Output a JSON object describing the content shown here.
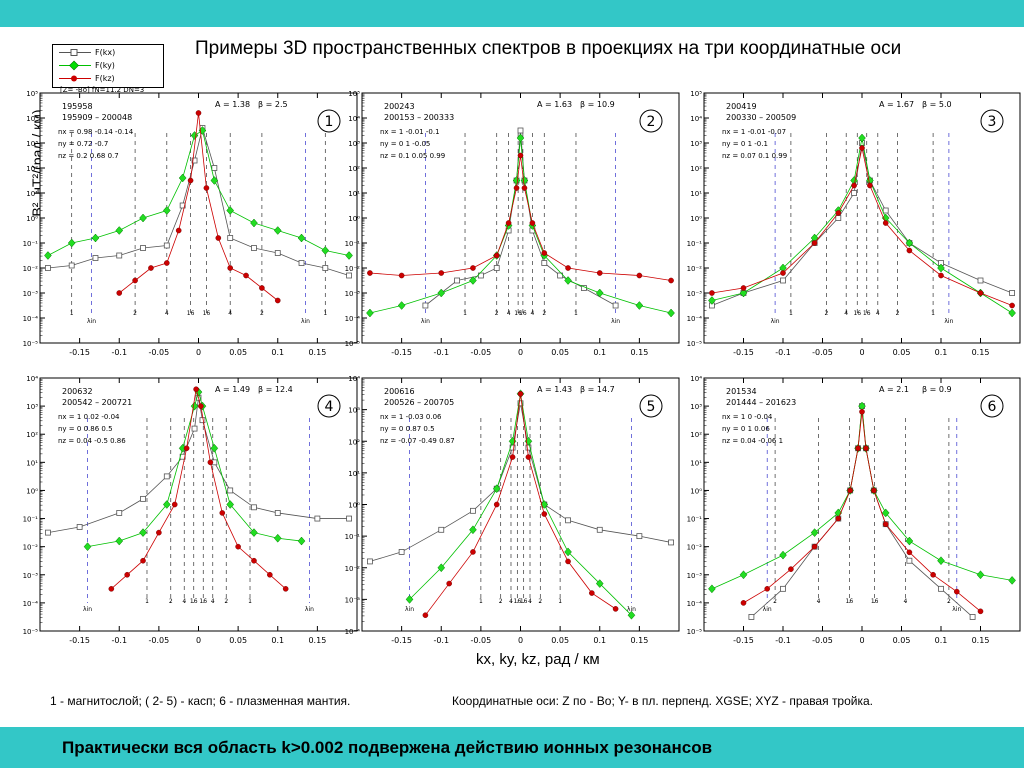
{
  "header": {
    "title": "Примеры 3D пространственных спектров в проекциях на три координатные оси",
    "meta": "[Z= -Bo]  fN=11.2   DN=3"
  },
  "legend": [
    {
      "label": "F(kx)",
      "color": "#555555",
      "marker": "square"
    },
    {
      "label": "F(ky)",
      "color": "#00c000",
      "marker": "diamond"
    },
    {
      "label": "F(kz)",
      "color": "#cc0000",
      "marker": "circle"
    }
  ],
  "axes": {
    "ylabel": "B², нТ²/(рад / км)",
    "xlabel": "kx, ky, kz,   рад / км"
  },
  "notes": {
    "left": "1 -  магнитослой;   ( 2- 5) - касп;    6 - плазменная мантия.",
    "right": "Координатные оси:   Z  по  - Bo;  Y- в пл. перпенд. XGSE;  XYZ - правая тройка."
  },
  "footer": {
    "text": "Практически вся область k>0.002 подвержена действию ионных резонансов"
  },
  "chart_data": [
    {
      "type": "line",
      "panel": "1",
      "ids": [
        "195958",
        "195909  – 200048"
      ],
      "A": "A = 1.38",
      "beta": "β = 2.5",
      "nx": "nx = 0.98  -0.14  -0.14",
      "ny": "ny = 0.72  -0.7",
      "nz": "nz = 0.2  0.68  0.7",
      "xlim": [
        -0.2,
        0.2
      ],
      "ylim_exp": [
        -5,
        5
      ],
      "vlines": [
        {
          "x": -0.16,
          "label": "1"
        },
        {
          "x": -0.135,
          "label": "λin"
        },
        {
          "x": -0.08,
          "label": "2"
        },
        {
          "x": -0.04,
          "label": "4"
        },
        {
          "x": -0.01,
          "label": "16"
        },
        {
          "x": 0.01,
          "label": "16"
        },
        {
          "x": 0.04,
          "label": "4"
        },
        {
          "x": 0.08,
          "label": "2"
        },
        {
          "x": 0.135,
          "label": "λin"
        },
        {
          "x": 0.16,
          "label": "1"
        }
      ],
      "series": [
        {
          "name": "F(kx)",
          "x": [
            -0.19,
            -0.16,
            -0.13,
            -0.1,
            -0.07,
            -0.04,
            -0.02,
            -0.005,
            0.005,
            0.02,
            0.04,
            0.07,
            0.1,
            0.13,
            0.16,
            0.19
          ],
          "y": [
            -2,
            -1.9,
            -1.6,
            -1.5,
            -1.2,
            -1.1,
            0.5,
            2.3,
            3.6,
            2,
            -0.8,
            -1.2,
            -1.4,
            -1.8,
            -2,
            -2.3
          ]
        },
        {
          "name": "F(ky)",
          "x": [
            -0.19,
            -0.16,
            -0.13,
            -0.1,
            -0.07,
            -0.04,
            -0.02,
            -0.005,
            0.005,
            0.02,
            0.04,
            0.07,
            0.1,
            0.13,
            0.16,
            0.19
          ],
          "y": [
            -1.5,
            -1,
            -0.8,
            -0.5,
            0,
            0.3,
            1.6,
            3.3,
            3.5,
            1.5,
            0.3,
            -0.2,
            -0.5,
            -0.8,
            -1.3,
            -1.5
          ]
        },
        {
          "name": "F(kz)",
          "x": [
            -0.1,
            -0.08,
            -0.06,
            -0.04,
            -0.025,
            -0.01,
            0,
            0.01,
            0.025,
            0.04,
            0.06,
            0.08,
            0.1
          ],
          "y": [
            -3,
            -2.5,
            -2,
            -1.8,
            -0.5,
            1.5,
            4.2,
            1.2,
            -0.8,
            -2,
            -2.3,
            -2.8,
            -3.3
          ]
        }
      ]
    },
    {
      "type": "line",
      "panel": "2",
      "ids": [
        "200243",
        "200153  – 200333"
      ],
      "A": "A = 1.63",
      "beta": "β = 10.9",
      "nx": "nx = 1  -0.01  -0.1",
      "ny": "ny = 0  1  -0.05",
      "nz": "nz = 0.1  0.05  0.99",
      "xlim": [
        -0.2,
        0.2
      ],
      "ylim_exp": [
        -5,
        5
      ],
      "vlines": [
        {
          "x": -0.12,
          "label": "λin"
        },
        {
          "x": -0.07,
          "label": "1"
        },
        {
          "x": -0.03,
          "label": "2"
        },
        {
          "x": -0.015,
          "label": "4"
        },
        {
          "x": -0.003,
          "label": "16"
        },
        {
          "x": 0.003,
          "label": "16"
        },
        {
          "x": 0.015,
          "label": "4"
        },
        {
          "x": 0.03,
          "label": "2"
        },
        {
          "x": 0.07,
          "label": "1"
        },
        {
          "x": 0.12,
          "label": "λin"
        }
      ],
      "series": [
        {
          "name": "F(kx)",
          "x": [
            -0.12,
            -0.08,
            -0.05,
            -0.03,
            -0.015,
            -0.005,
            0,
            0.005,
            0.015,
            0.03,
            0.05,
            0.08,
            0.12
          ],
          "y": [
            -3.5,
            -2.5,
            -2.3,
            -2,
            -0.5,
            1.5,
            3.5,
            1.5,
            -0.5,
            -1.8,
            -2.3,
            -2.8,
            -3.5
          ]
        },
        {
          "name": "F(ky)",
          "x": [
            -0.19,
            -0.15,
            -0.1,
            -0.06,
            -0.03,
            -0.015,
            -0.005,
            0,
            0.005,
            0.015,
            0.03,
            0.06,
            0.1,
            0.15,
            0.19
          ],
          "y": [
            -3.8,
            -3.5,
            -3,
            -2.5,
            -1.5,
            -0.3,
            1.5,
            3.2,
            1.5,
            -0.3,
            -1.5,
            -2.5,
            -3,
            -3.5,
            -3.8
          ]
        },
        {
          "name": "F(kz)",
          "x": [
            -0.19,
            -0.15,
            -0.1,
            -0.06,
            -0.03,
            -0.015,
            -0.005,
            0,
            0.005,
            0.015,
            0.03,
            0.06,
            0.1,
            0.15,
            0.19
          ],
          "y": [
            -2.2,
            -2.3,
            -2.2,
            -2,
            -1.5,
            -0.2,
            1.2,
            2.5,
            1.2,
            -0.2,
            -1.4,
            -2,
            -2.2,
            -2.3,
            -2.5
          ]
        }
      ]
    },
    {
      "type": "line",
      "panel": "3",
      "ids": [
        "200419",
        "200330  – 200509"
      ],
      "A": "A = 1.67",
      "beta": "β = 5.0",
      "nx": "nx = 1  -0.01  -0.07",
      "ny": "ny = 0  1  -0.1",
      "nz": "nz = 0.07  0.1  0.99",
      "xlim": [
        -0.2,
        0.2
      ],
      "ylim_exp": [
        -5,
        5
      ],
      "vlines": [
        {
          "x": -0.11,
          "label": "λin"
        },
        {
          "x": -0.09,
          "label": "1"
        },
        {
          "x": -0.045,
          "label": "2"
        },
        {
          "x": -0.02,
          "label": "4"
        },
        {
          "x": -0.006,
          "label": "16"
        },
        {
          "x": 0.006,
          "label": "16"
        },
        {
          "x": 0.02,
          "label": "4"
        },
        {
          "x": 0.045,
          "label": "2"
        },
        {
          "x": 0.09,
          "label": "1"
        },
        {
          "x": 0.11,
          "label": "λin"
        }
      ],
      "series": [
        {
          "name": "F(kx)",
          "x": [
            -0.19,
            -0.15,
            -0.1,
            -0.06,
            -0.03,
            -0.01,
            0,
            0.01,
            0.03,
            0.06,
            0.1,
            0.15,
            0.19
          ],
          "y": [
            -3.5,
            -3,
            -2.5,
            -1,
            0,
            1,
            3,
            1.5,
            0.3,
            -1,
            -1.8,
            -2.5,
            -3
          ]
        },
        {
          "name": "F(ky)",
          "x": [
            -0.19,
            -0.15,
            -0.1,
            -0.06,
            -0.03,
            -0.01,
            0,
            0.01,
            0.03,
            0.06,
            0.1,
            0.15,
            0.19
          ],
          "y": [
            -3.3,
            -3,
            -2,
            -0.8,
            0.3,
            1.5,
            3.2,
            1.5,
            0,
            -1,
            -2,
            -3,
            -3.8
          ]
        },
        {
          "name": "F(kz)",
          "x": [
            -0.19,
            -0.15,
            -0.1,
            -0.06,
            -0.03,
            -0.01,
            0,
            0.01,
            0.03,
            0.06,
            0.1,
            0.15,
            0.19
          ],
          "y": [
            -3,
            -2.8,
            -2.2,
            -1,
            0.2,
            1.3,
            2.8,
            1.3,
            -0.2,
            -1.3,
            -2.3,
            -3,
            -3.5
          ]
        }
      ]
    },
    {
      "type": "line",
      "panel": "4",
      "ids": [
        "200632",
        "200542  – 200721"
      ],
      "A": "A = 1.49",
      "beta": "β = 12.4",
      "nx": "nx = 1  0.02  -0.04",
      "ny": "ny = 0  0.86  0.5",
      "nz": "nz = 0.04  -0.5  0.86",
      "xlim": [
        -0.2,
        0.2
      ],
      "ylim_exp": [
        -5,
        4
      ],
      "vlines": [
        {
          "x": -0.14,
          "label": "λin"
        },
        {
          "x": -0.065,
          "label": "1"
        },
        {
          "x": -0.035,
          "label": "2"
        },
        {
          "x": -0.018,
          "label": "4"
        },
        {
          "x": -0.006,
          "label": "16"
        },
        {
          "x": 0.006,
          "label": "16"
        },
        {
          "x": 0.018,
          "label": "4"
        },
        {
          "x": 0.035,
          "label": "2"
        },
        {
          "x": 0.065,
          "label": "1"
        },
        {
          "x": 0.14,
          "label": "λin"
        }
      ],
      "series": [
        {
          "name": "F(kx)",
          "x": [
            -0.19,
            -0.15,
            -0.1,
            -0.07,
            -0.04,
            -0.02,
            -0.005,
            0,
            0.005,
            0.02,
            0.04,
            0.07,
            0.1,
            0.15,
            0.19
          ],
          "y": [
            -1.5,
            -1.3,
            -0.8,
            -0.3,
            0.5,
            1.2,
            2.2,
            3.3,
            2.5,
            1,
            0,
            -0.6,
            -0.8,
            -1,
            -1
          ]
        },
        {
          "name": "F(ky)",
          "x": [
            -0.14,
            -0.1,
            -0.07,
            -0.04,
            -0.02,
            -0.005,
            0,
            0.005,
            0.02,
            0.04,
            0.07,
            0.1,
            0.13
          ],
          "y": [
            -2,
            -1.8,
            -1.5,
            -0.5,
            1.5,
            3,
            3.5,
            3,
            1.5,
            -0.5,
            -1.5,
            -1.7,
            -1.8
          ]
        },
        {
          "name": "F(kz)",
          "x": [
            -0.11,
            -0.09,
            -0.07,
            -0.05,
            -0.03,
            -0.015,
            -0.003,
            0.003,
            0.015,
            0.03,
            0.05,
            0.07,
            0.09,
            0.11
          ],
          "y": [
            -3.5,
            -3,
            -2.5,
            -1.5,
            -0.5,
            1.5,
            3.6,
            3,
            1,
            -0.8,
            -2,
            -2.5,
            -3,
            -3.5
          ]
        }
      ]
    },
    {
      "type": "line",
      "panel": "5",
      "ids": [
        "200616",
        "200526  – 200705"
      ],
      "A": "A = 1.43",
      "beta": "β = 14.7",
      "nx": "nx = 1  -0.03  0.06",
      "ny": "ny = 0  0.87  0.5",
      "nz": "nz = -0.07  -0.49  0.87",
      "xlim": [
        -0.2,
        0.2
      ],
      "ylim_exp": [
        -4,
        4
      ],
      "vlines": [
        {
          "x": -0.14,
          "label": "λin"
        },
        {
          "x": -0.05,
          "label": "1"
        },
        {
          "x": -0.025,
          "label": "2"
        },
        {
          "x": -0.012,
          "label": "4"
        },
        {
          "x": -0.004,
          "label": "16"
        },
        {
          "x": 0.004,
          "label": "16"
        },
        {
          "x": 0.012,
          "label": "4"
        },
        {
          "x": 0.025,
          "label": "2"
        },
        {
          "x": 0.05,
          "label": "1"
        },
        {
          "x": 0.14,
          "label": "λin"
        }
      ],
      "series": [
        {
          "name": "F(kx)",
          "x": [
            -0.19,
            -0.15,
            -0.1,
            -0.06,
            -0.03,
            -0.01,
            0,
            0.01,
            0.03,
            0.06,
            0.1,
            0.15,
            0.19
          ],
          "y": [
            -1.8,
            -1.5,
            -0.8,
            -0.2,
            0.5,
            1.8,
            3.2,
            1.8,
            0,
            -0.5,
            -0.8,
            -1,
            -1.2
          ]
        },
        {
          "name": "F(ky)",
          "x": [
            -0.14,
            -0.1,
            -0.06,
            -0.03,
            -0.01,
            0,
            0.01,
            0.03,
            0.06,
            0.1,
            0.14
          ],
          "y": [
            -3,
            -2,
            -0.8,
            0.5,
            2,
            3.5,
            2,
            0,
            -1.5,
            -2.5,
            -3.5
          ]
        },
        {
          "name": "F(kz)",
          "x": [
            -0.12,
            -0.09,
            -0.06,
            -0.03,
            -0.01,
            0,
            0.01,
            0.03,
            0.06,
            0.09,
            0.12
          ],
          "y": [
            -3.5,
            -2.5,
            -1.5,
            0,
            1.5,
            3.5,
            1.5,
            -0.3,
            -1.8,
            -2.8,
            -3.3
          ]
        }
      ]
    },
    {
      "type": "line",
      "panel": "6",
      "ids": [
        "201534",
        "201444  – 201623"
      ],
      "A": "A = 2.1",
      "beta": "β = 0.9",
      "nx": "nx = 1  0  -0.04",
      "ny": "ny = 0  1  0.06",
      "nz": "nz = 0.04  -0.06  1",
      "xlim": [
        -0.2,
        0.2
      ],
      "ylim_exp": [
        -5,
        4
      ],
      "vlines": [
        {
          "x": -0.12,
          "label": "λin"
        },
        {
          "x": -0.11,
          "label": "2"
        },
        {
          "x": -0.055,
          "label": "4"
        },
        {
          "x": -0.016,
          "label": "16"
        },
        {
          "x": 0.016,
          "label": "16"
        },
        {
          "x": 0.055,
          "label": "4"
        },
        {
          "x": 0.11,
          "label": "2"
        },
        {
          "x": 0.12,
          "label": "λin"
        }
      ],
      "series": [
        {
          "name": "F(kx)",
          "x": [
            -0.14,
            -0.1,
            -0.06,
            -0.03,
            -0.015,
            -0.005,
            0,
            0.005,
            0.015,
            0.03,
            0.06,
            0.1,
            0.14
          ],
          "y": [
            -4.5,
            -3.5,
            -2,
            -1,
            0,
            1.5,
            3,
            1.5,
            0,
            -1.2,
            -2.5,
            -3.5,
            -4.5
          ]
        },
        {
          "name": "F(ky)",
          "x": [
            -0.19,
            -0.15,
            -0.1,
            -0.06,
            -0.03,
            -0.015,
            -0.005,
            0,
            0.005,
            0.015,
            0.03,
            0.06,
            0.1,
            0.15,
            0.19
          ],
          "y": [
            -3.5,
            -3,
            -2.3,
            -1.5,
            -0.8,
            0,
            1.5,
            3,
            1.5,
            0,
            -0.8,
            -1.8,
            -2.5,
            -3,
            -3.2
          ]
        },
        {
          "name": "F(kz)",
          "x": [
            -0.15,
            -0.12,
            -0.09,
            -0.06,
            -0.03,
            -0.015,
            -0.005,
            0,
            0.005,
            0.015,
            0.03,
            0.06,
            0.09,
            0.12,
            0.15
          ],
          "y": [
            -4,
            -3.5,
            -2.8,
            -2,
            -1,
            0,
            1.5,
            2.8,
            1.5,
            0,
            -1.2,
            -2.2,
            -3,
            -3.6,
            -4.3
          ]
        }
      ]
    }
  ]
}
